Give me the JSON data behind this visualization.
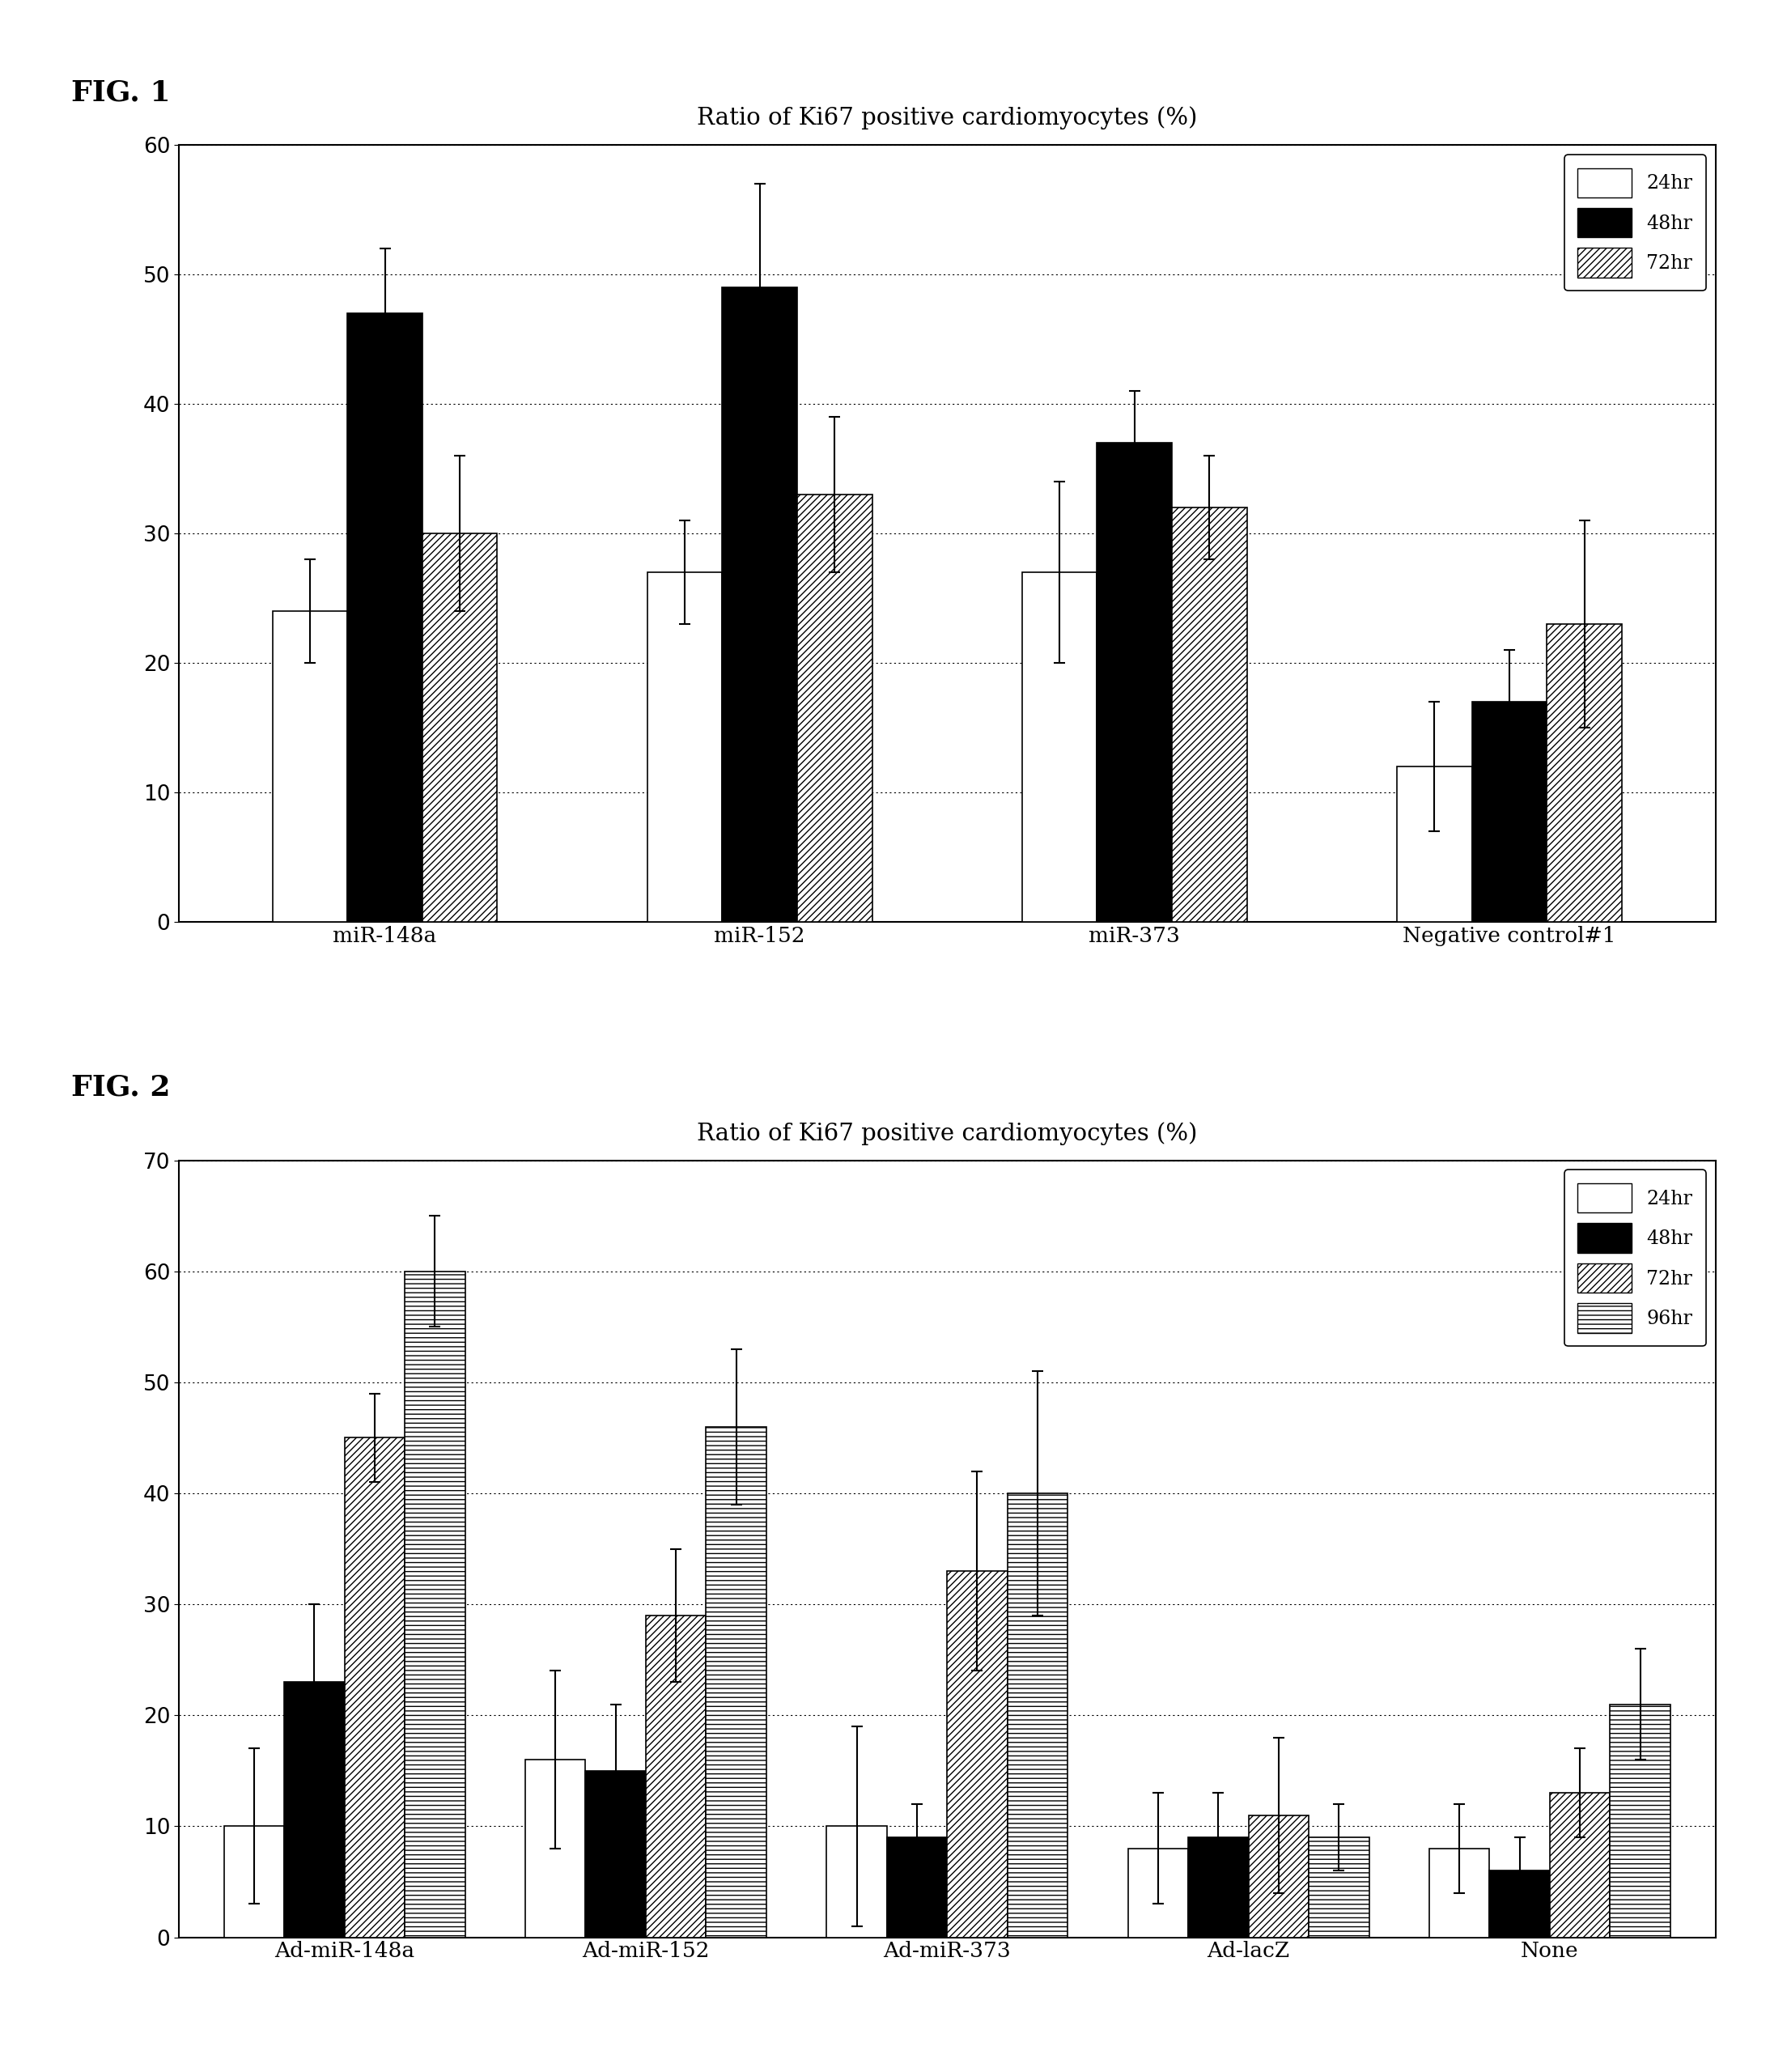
{
  "fig1": {
    "title": "Ratio of Ki67 positive cardiomyocytes (%)",
    "fig_label": "FIG. 1",
    "categories": [
      "miR-148a",
      "miR-152",
      "miR-373",
      "Negative control#1"
    ],
    "series": [
      {
        "label": "24hr",
        "values": [
          24,
          27,
          27,
          12
        ],
        "errors": [
          4,
          4,
          7,
          5
        ],
        "color": "white",
        "hatch": ""
      },
      {
        "label": "48hr",
        "values": [
          47,
          49,
          37,
          17
        ],
        "errors": [
          5,
          8,
          4,
          4
        ],
        "color": "black",
        "hatch": ""
      },
      {
        "label": "72hr",
        "values": [
          30,
          33,
          32,
          23
        ],
        "errors": [
          6,
          6,
          4,
          8
        ],
        "color": "white",
        "hatch": "////"
      }
    ],
    "ylim": [
      0,
      60
    ],
    "yticks": [
      0,
      10,
      20,
      30,
      40,
      50,
      60
    ]
  },
  "fig2": {
    "title": "Ratio of Ki67 positive cardiomyocytes (%)",
    "fig_label": "FIG. 2",
    "categories": [
      "Ad-miR-148a",
      "Ad-miR-152",
      "Ad-miR-373",
      "Ad-lacZ",
      "None"
    ],
    "series": [
      {
        "label": "24hr",
        "values": [
          10,
          16,
          10,
          8,
          8
        ],
        "errors": [
          7,
          8,
          9,
          5,
          4
        ],
        "color": "white",
        "hatch": ""
      },
      {
        "label": "48hr",
        "values": [
          23,
          15,
          9,
          9,
          6
        ],
        "errors": [
          7,
          6,
          3,
          4,
          3
        ],
        "color": "black",
        "hatch": ""
      },
      {
        "label": "72hr",
        "values": [
          45,
          29,
          33,
          11,
          13
        ],
        "errors": [
          4,
          6,
          9,
          7,
          4
        ],
        "color": "white",
        "hatch": "////"
      },
      {
        "label": "96hr",
        "values": [
          60,
          46,
          40,
          9,
          21
        ],
        "errors": [
          5,
          7,
          11,
          3,
          5
        ],
        "color": "white",
        "hatch": "---"
      }
    ],
    "ylim": [
      0,
      70
    ],
    "yticks": [
      0,
      10,
      20,
      30,
      40,
      50,
      60,
      70
    ]
  },
  "background_color": "white",
  "bar_edgecolor": "black",
  "errorbar_color": "black",
  "errorbar_capsize": 5,
  "bar_linewidth": 1.2
}
